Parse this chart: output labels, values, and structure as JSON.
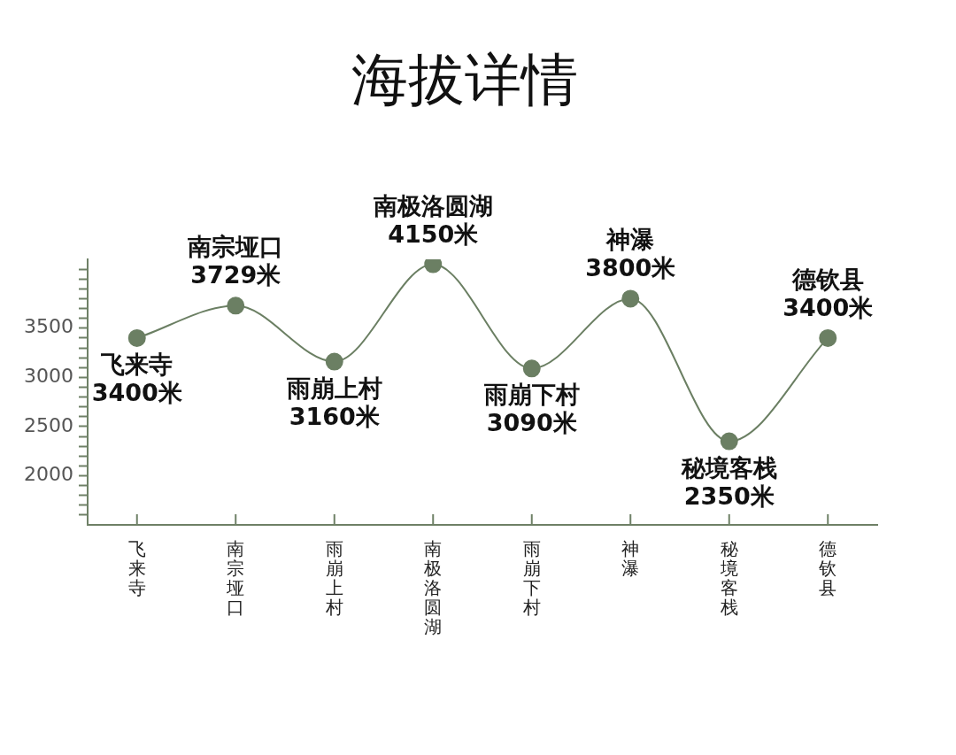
{
  "chart_data": {
    "type": "line",
    "title": "海拔详情",
    "categories": [
      "飞来寺",
      "南宗垭口",
      "雨崩上村",
      "南极洛圆湖",
      "雨崩下村",
      "神瀑",
      "秘境客栈",
      "德钦县"
    ],
    "values": [
      3400,
      3729,
      3160,
      4150,
      3090,
      3800,
      2350,
      3400
    ],
    "value_labels": [
      "3400米",
      "3729米",
      "3160米",
      "4150米",
      "3090米",
      "3800米",
      "2350米",
      "3400米"
    ],
    "color": "#6b7f63",
    "ylim": [
      1500,
      4200
    ],
    "yticks": [
      {
        "value": 1600,
        "label": null
      },
      {
        "value": 1700,
        "label": null
      },
      {
        "value": 1800,
        "label": null
      },
      {
        "value": 1900,
        "label": null
      },
      2000,
      {
        "value": 2100,
        "label": null
      },
      {
        "value": 2200,
        "label": null
      },
      {
        "value": 2300,
        "label": null
      },
      {
        "value": 2400,
        "label": null
      },
      2500,
      {
        "value": 2600,
        "label": null
      },
      {
        "value": 2700,
        "label": null
      },
      {
        "value": 2800,
        "label": null
      },
      {
        "value": 2900,
        "label": null
      },
      3000,
      {
        "value": 3100,
        "label": null
      },
      {
        "value": 3200,
        "label": null
      },
      {
        "value": 3300,
        "label": null
      },
      {
        "value": 3400,
        "label": null
      },
      3500,
      {
        "value": 3600,
        "label": null
      },
      {
        "value": 3700,
        "label": null
      },
      {
        "value": 3800,
        "label": null
      },
      {
        "value": 3900,
        "label": null
      },
      {
        "value": 4000,
        "label": null
      },
      {
        "value": 4100,
        "label": null
      }
    ],
    "grid": false,
    "legend": false,
    "marker": "circle",
    "line_style": "solid"
  }
}
